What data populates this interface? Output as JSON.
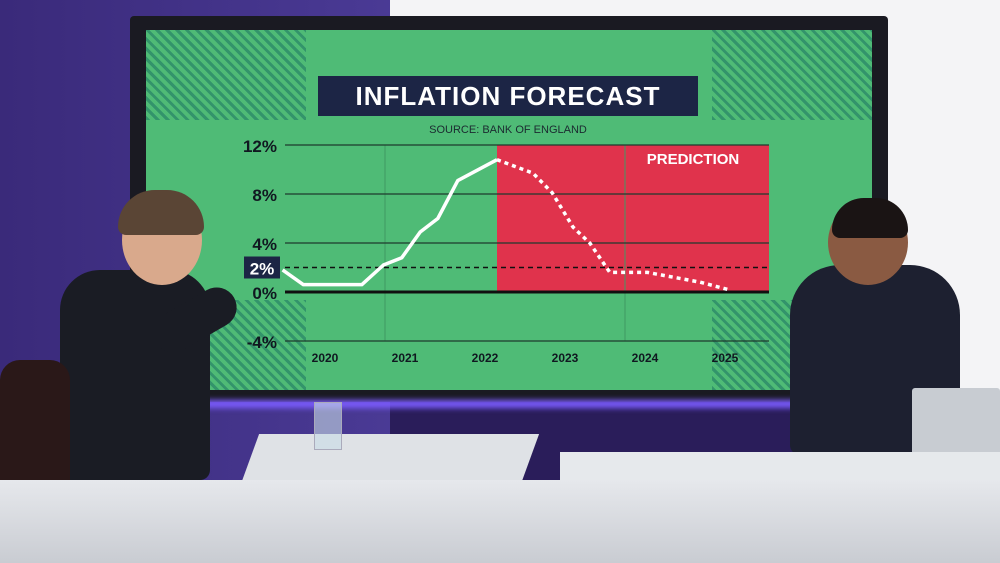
{
  "chart_data": {
    "type": "line",
    "title": "INFLATION FORECAST",
    "subtitle": "SOURCE: BANK OF ENGLAND",
    "annotation": "PREDICTION",
    "xlabel": "",
    "ylabel": "",
    "x_tick_labels": [
      "2020",
      "2021",
      "2022",
      "2023",
      "2024",
      "2025"
    ],
    "y_tick_labels": [
      "12%",
      "8%",
      "4%",
      "0%",
      "-4%"
    ],
    "y_ticks": [
      12,
      8,
      4,
      0,
      -4
    ],
    "ylim": [
      -4,
      12
    ],
    "xlim": [
      2019.45,
      2025.55
    ],
    "target_line": {
      "value": 2,
      "label": "2%"
    },
    "prediction_region": {
      "x_start": 2022.15,
      "x_end": 2025.55,
      "color": "#e0334c"
    },
    "grid": true,
    "series": [
      {
        "style": "solid",
        "color": "#ffffff",
        "x": [
          2019.47,
          2019.73,
          2020.46,
          2020.73,
          2020.96,
          2021.19,
          2021.41,
          2021.66,
          2022.15
        ],
        "y": [
          1.8,
          0.6,
          0.6,
          2.2,
          2.8,
          4.9,
          6.0,
          9.1,
          10.8
        ]
      },
      {
        "style": "dotted",
        "color": "#ffffff",
        "x": [
          2022.15,
          2022.6,
          2022.84,
          2023.1,
          2023.31,
          2023.56,
          2024.03,
          2024.69,
          2025.04
        ],
        "y": [
          10.8,
          9.7,
          8.1,
          5.3,
          4.0,
          1.6,
          1.6,
          0.8,
          0.2
        ]
      }
    ],
    "colors": {
      "background": "#4fbb76",
      "title_box": "#1c2545",
      "gridline": "#1f3a2e"
    }
  }
}
